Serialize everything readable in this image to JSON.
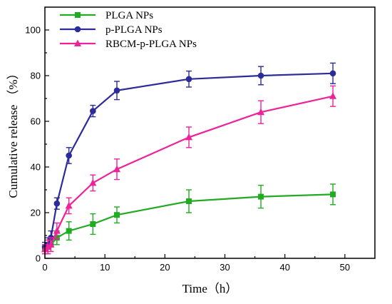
{
  "chart_data": {
    "type": "line",
    "xlabel": "Time（h）",
    "ylabel": "Cumulative release （%）",
    "xlim": [
      0,
      55
    ],
    "ylim": [
      0,
      110
    ],
    "xticks": [
      0,
      10,
      20,
      30,
      40,
      50
    ],
    "yticks": [
      0,
      20,
      40,
      60,
      80,
      100
    ],
    "legend_position": "top-left",
    "series": [
      {
        "name": "PLGA NPs",
        "color": "#22aa22",
        "marker": "square",
        "x": [
          0,
          0.5,
          1,
          2,
          4,
          8,
          12,
          24,
          36,
          48
        ],
        "y": [
          4,
          5,
          6,
          9,
          12,
          15,
          19,
          25,
          27,
          28
        ],
        "err": [
          2,
          3,
          3,
          3,
          4,
          4.5,
          3.5,
          5,
          5,
          4.5
        ]
      },
      {
        "name": "p-PLGA NPs",
        "color": "#2b2b99",
        "marker": "circle",
        "x": [
          0,
          0.5,
          1,
          2,
          4,
          8,
          12,
          24,
          36,
          48
        ],
        "y": [
          5,
          6,
          9,
          24,
          45,
          64.5,
          73.5,
          78.5,
          80,
          81
        ],
        "err": [
          2,
          3,
          3,
          2.5,
          3.5,
          2.5,
          4,
          3.5,
          4,
          4.5
        ]
      },
      {
        "name": "RBCM-p-PLGA NPs",
        "color": "#ee2299",
        "marker": "triangle",
        "x": [
          0,
          0.5,
          1,
          2,
          4,
          8,
          12,
          24,
          36,
          48
        ],
        "y": [
          4,
          5,
          6,
          12,
          23,
          33,
          39,
          53,
          64,
          71
        ],
        "err": [
          2,
          3,
          3,
          3.5,
          3.5,
          3.5,
          4.5,
          4.5,
          5,
          4.5
        ]
      }
    ]
  }
}
